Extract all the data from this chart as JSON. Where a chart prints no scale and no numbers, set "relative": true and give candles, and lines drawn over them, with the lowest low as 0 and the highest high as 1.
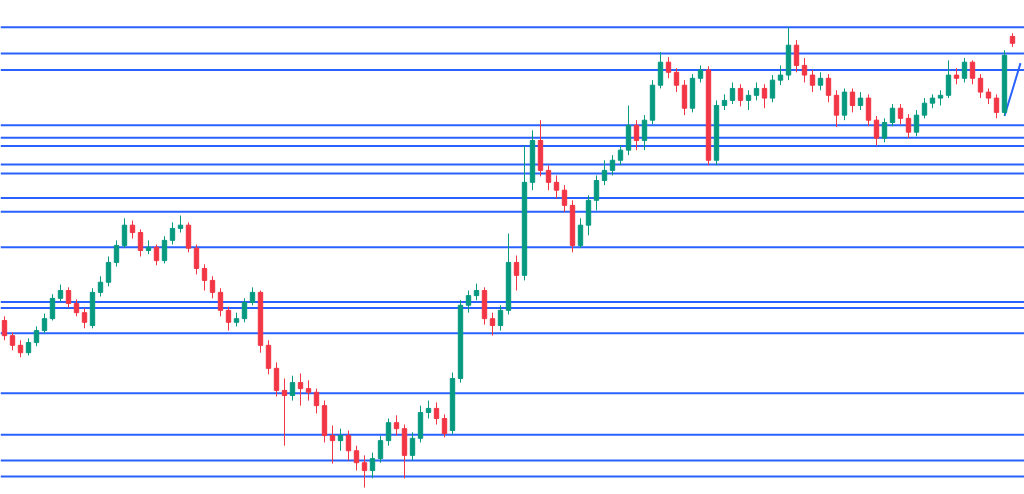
{
  "chart_data": {
    "type": "candlestick",
    "relative": true,
    "tick_labels": false,
    "categories": [
      null,
      null,
      null,
      null,
      null,
      null,
      null,
      null,
      null,
      null,
      null,
      null,
      null,
      null,
      null,
      null,
      null,
      null,
      null,
      null,
      null,
      null,
      null,
      null,
      null,
      null,
      null,
      null,
      null,
      null,
      null,
      null,
      null,
      null,
      null,
      null,
      null,
      null,
      null,
      null,
      null,
      null,
      null,
      null,
      null,
      null,
      null,
      null,
      null,
      null,
      null,
      null,
      null,
      null,
      null,
      null,
      null,
      null,
      null,
      null,
      null,
      null,
      null,
      null,
      null,
      null,
      null,
      null,
      null,
      null,
      null,
      null,
      null,
      null,
      null,
      null,
      null,
      null,
      null,
      null,
      null,
      null,
      null,
      null,
      null,
      null,
      null,
      null,
      null,
      null,
      null,
      null,
      null,
      null,
      null,
      null,
      null,
      null,
      null,
      null,
      null,
      null,
      null,
      null,
      null,
      null,
      null,
      null,
      null,
      null,
      null,
      null,
      null,
      null,
      null,
      null,
      null,
      null,
      null,
      null,
      null,
      null,
      null,
      null,
      null,
      null,
      null,
      null
    ],
    "ohlc": [
      [
        0.363,
        0.372,
        0.32,
        0.33
      ],
      [
        0.33,
        0.337,
        0.298,
        0.309
      ],
      [
        0.309,
        0.32,
        0.283,
        0.293
      ],
      [
        0.293,
        0.324,
        0.287,
        0.315
      ],
      [
        0.315,
        0.35,
        0.307,
        0.341
      ],
      [
        0.341,
        0.378,
        0.335,
        0.367
      ],
      [
        0.367,
        0.42,
        0.363,
        0.411
      ],
      [
        0.411,
        0.441,
        0.404,
        0.428
      ],
      [
        0.428,
        0.435,
        0.391,
        0.4
      ],
      [
        0.4,
        0.409,
        0.372,
        0.38
      ],
      [
        0.38,
        0.389,
        0.346,
        0.359
      ],
      [
        0.352,
        0.433,
        0.346,
        0.424
      ],
      [
        0.424,
        0.459,
        0.415,
        0.446
      ],
      [
        0.446,
        0.502,
        0.437,
        0.489
      ],
      [
        0.489,
        0.537,
        0.48,
        0.526
      ],
      [
        0.526,
        0.585,
        0.52,
        0.57
      ],
      [
        0.57,
        0.58,
        0.541,
        0.554
      ],
      [
        0.554,
        0.561,
        0.502,
        0.515
      ],
      [
        0.515,
        0.537,
        0.507,
        0.522
      ],
      [
        0.522,
        0.528,
        0.483,
        0.493
      ],
      [
        0.493,
        0.546,
        0.487,
        0.537
      ],
      [
        0.537,
        0.576,
        0.528,
        0.563
      ],
      [
        0.563,
        0.591,
        0.554,
        0.57
      ],
      [
        0.57,
        0.576,
        0.511,
        0.52
      ],
      [
        0.52,
        0.528,
        0.463,
        0.476
      ],
      [
        0.476,
        0.485,
        0.428,
        0.45
      ],
      [
        0.45,
        0.459,
        0.411,
        0.424
      ],
      [
        0.424,
        0.433,
        0.372,
        0.385
      ],
      [
        0.385,
        0.393,
        0.341,
        0.359
      ],
      [
        0.359,
        0.38,
        0.35,
        0.367
      ],
      [
        0.367,
        0.411,
        0.359,
        0.402
      ],
      [
        0.402,
        0.435,
        0.396,
        0.424
      ],
      [
        0.424,
        0.428,
        0.293,
        0.309
      ],
      [
        0.309,
        0.32,
        0.246,
        0.259
      ],
      [
        0.259,
        0.272,
        0.198,
        0.211
      ],
      [
        0.211,
        0.237,
        0.091,
        0.2
      ],
      [
        0.2,
        0.243,
        0.189,
        0.228
      ],
      [
        0.228,
        0.248,
        0.178,
        0.215
      ],
      [
        0.215,
        0.233,
        0.189,
        0.207
      ],
      [
        0.207,
        0.215,
        0.161,
        0.178
      ],
      [
        0.178,
        0.189,
        0.098,
        0.113
      ],
      [
        0.113,
        0.135,
        0.052,
        0.102
      ],
      [
        0.102,
        0.128,
        0.08,
        0.113
      ],
      [
        0.113,
        0.124,
        0.059,
        0.08
      ],
      [
        0.08,
        0.091,
        0.037,
        0.054
      ],
      [
        0.054,
        0.07,
        0,
        0.037
      ],
      [
        0.037,
        0.076,
        0.02,
        0.063
      ],
      [
        0.063,
        0.113,
        0.054,
        0.102
      ],
      [
        0.102,
        0.15,
        0.091,
        0.141
      ],
      [
        0.141,
        0.157,
        0.113,
        0.128
      ],
      [
        0.128,
        0.137,
        0.02,
        0.07
      ],
      [
        0.07,
        0.12,
        0.059,
        0.107
      ],
      [
        0.107,
        0.178,
        0.098,
        0.163
      ],
      [
        0.163,
        0.189,
        0.15,
        0.172
      ],
      [
        0.172,
        0.185,
        0.137,
        0.15
      ],
      [
        0.15,
        0.159,
        0.109,
        0.117
      ],
      [
        0.124,
        0.25,
        0.115,
        0.237
      ],
      [
        0.237,
        0.407,
        0.228,
        0.396
      ],
      [
        0.396,
        0.428,
        0.38,
        0.417
      ],
      [
        0.417,
        0.443,
        0.407,
        0.428
      ],
      [
        0.428,
        0.435,
        0.354,
        0.367
      ],
      [
        0.367,
        0.38,
        0.33,
        0.352
      ],
      [
        0.352,
        0.396,
        0.341,
        0.385
      ],
      [
        0.385,
        0.552,
        0.376,
        0.489
      ],
      [
        0.489,
        0.504,
        0.428,
        0.461
      ],
      [
        0.461,
        0.743,
        0.45,
        0.663
      ],
      [
        0.663,
        0.776,
        0.646,
        0.754
      ],
      [
        0.754,
        0.798,
        0.676,
        0.689
      ],
      [
        0.689,
        0.7,
        0.646,
        0.663
      ],
      [
        0.663,
        0.678,
        0.628,
        0.646
      ],
      [
        0.646,
        0.657,
        0.598,
        0.613
      ],
      [
        0.613,
        0.624,
        0.511,
        0.526
      ],
      [
        0.526,
        0.585,
        0.52,
        0.57
      ],
      [
        0.57,
        0.635,
        0.548,
        0.624
      ],
      [
        0.624,
        0.678,
        0.602,
        0.667
      ],
      [
        0.667,
        0.711,
        0.657,
        0.689
      ],
      [
        0.689,
        0.722,
        0.678,
        0.711
      ],
      [
        0.711,
        0.743,
        0.7,
        0.733
      ],
      [
        0.733,
        0.83,
        0.722,
        0.787
      ],
      [
        0.787,
        0.798,
        0.733,
        0.754
      ],
      [
        0.754,
        0.809,
        0.733,
        0.798
      ],
      [
        0.798,
        0.885,
        0.789,
        0.874
      ],
      [
        0.874,
        0.946,
        0.867,
        0.924
      ],
      [
        0.924,
        0.935,
        0.889,
        0.902
      ],
      [
        0.902,
        0.911,
        0.859,
        0.874
      ],
      [
        0.874,
        0.885,
        0.809,
        0.824
      ],
      [
        0.824,
        0.898,
        0.815,
        0.889
      ],
      [
        0.889,
        0.917,
        0.88,
        0.907
      ],
      [
        0.907,
        0.915,
        0.7,
        0.711
      ],
      [
        0.711,
        0.841,
        0.7,
        0.83
      ],
      [
        0.83,
        0.854,
        0.82,
        0.841
      ],
      [
        0.841,
        0.88,
        0.833,
        0.867
      ],
      [
        0.867,
        0.876,
        0.828,
        0.841
      ],
      [
        0.841,
        0.863,
        0.82,
        0.852
      ],
      [
        0.852,
        0.88,
        0.841,
        0.867
      ],
      [
        0.867,
        0.876,
        0.824,
        0.846
      ],
      [
        0.846,
        0.896,
        0.837,
        0.885
      ],
      [
        0.885,
        0.917,
        0.874,
        0.896
      ],
      [
        0.896,
        1,
        0.885,
        0.961
      ],
      [
        0.961,
        0.972,
        0.902,
        0.917
      ],
      [
        0.917,
        0.933,
        0.88,
        0.896
      ],
      [
        0.896,
        0.907,
        0.859,
        0.874
      ],
      [
        0.874,
        0.902,
        0.863,
        0.889
      ],
      [
        0.889,
        0.898,
        0.837,
        0.852
      ],
      [
        0.852,
        0.863,
        0.783,
        0.809
      ],
      [
        0.809,
        0.867,
        0.798,
        0.859
      ],
      [
        0.859,
        0.867,
        0.815,
        0.83
      ],
      [
        0.83,
        0.859,
        0.82,
        0.846
      ],
      [
        0.846,
        0.854,
        0.785,
        0.798
      ],
      [
        0.798,
        0.807,
        0.743,
        0.759
      ],
      [
        0.759,
        0.802,
        0.75,
        0.793
      ],
      [
        0.793,
        0.833,
        0.785,
        0.824
      ],
      [
        0.824,
        0.833,
        0.789,
        0.802
      ],
      [
        0.802,
        0.811,
        0.759,
        0.772
      ],
      [
        0.772,
        0.82,
        0.763,
        0.809
      ],
      [
        0.809,
        0.846,
        0.802,
        0.835
      ],
      [
        0.835,
        0.854,
        0.824,
        0.846
      ],
      [
        0.846,
        0.863,
        0.83,
        0.852
      ],
      [
        0.852,
        0.928,
        0.846,
        0.896
      ],
      [
        0.896,
        0.911,
        0.876,
        0.889
      ],
      [
        0.889,
        0.933,
        0.88,
        0.924
      ],
      [
        0.924,
        0.928,
        0.876,
        0.889
      ],
      [
        0.889,
        0.898,
        0.846,
        0.859
      ],
      [
        0.859,
        0.867,
        0.833,
        0.846
      ],
      [
        0.846,
        0.854,
        0.802,
        0.815
      ],
      [
        0.815,
        0.95,
        0.807,
        0.939
      ],
      [
        0.98,
        0.987,
        0.957,
        0.965
      ],
      null
    ],
    "colors": [
      "#f23645",
      "#f23645",
      "#f23645",
      "#089981",
      "#089981",
      "#089981",
      "#089981",
      "#089981",
      "#f23645",
      "#f23645",
      "#f23645",
      "#089981",
      "#089981",
      "#089981",
      "#089981",
      "#089981",
      "#f23645",
      "#f23645",
      "#089981",
      "#f23645",
      "#089981",
      "#089981",
      "#089981",
      "#f23645",
      "#f23645",
      "#f23645",
      "#f23645",
      "#f23645",
      "#f23645",
      "#089981",
      "#089981",
      "#089981",
      "#f23645",
      "#f23645",
      "#f23645",
      "#f23645",
      "#089981",
      "#f23645",
      "#f23645",
      "#f23645",
      "#f23645",
      "#f23645",
      "#089981",
      "#f23645",
      "#f23645",
      "#f23645",
      "#089981",
      "#089981",
      "#089981",
      "#f23645",
      "#f23645",
      "#089981",
      "#089981",
      "#089981",
      "#f23645",
      "#f23645",
      "#089981",
      "#089981",
      "#089981",
      "#089981",
      "#f23645",
      "#f23645",
      "#089981",
      "#089981",
      "#f23645",
      "#089981",
      "#089981",
      "#f23645",
      "#f23645",
      "#f23645",
      "#f23645",
      "#f23645",
      "#089981",
      "#089981",
      "#089981",
      "#089981",
      "#089981",
      "#089981",
      "#089981",
      "#f23645",
      "#089981",
      "#089981",
      "#089981",
      "#f23645",
      "#f23645",
      "#f23645",
      "#089981",
      "#089981",
      "#f23645",
      "#089981",
      "#089981",
      "#089981",
      "#f23645",
      "#089981",
      "#089981",
      "#f23645",
      "#089981",
      "#089981",
      "#089981",
      "#f23645",
      "#f23645",
      "#f23645",
      "#089981",
      "#f23645",
      "#f23645",
      "#089981",
      "#f23645",
      "#089981",
      "#f23645",
      "#f23645",
      "#089981",
      "#089981",
      "#f23645",
      "#f23645",
      "#089981",
      "#089981",
      "#089981",
      "#089981",
      "#089981",
      "#f23645",
      "#089981",
      "#f23645",
      "#f23645",
      "#f23645",
      "#f23645",
      "#089981",
      "#f23645",
      null
    ],
    "series": [
      {
        "type": "line",
        "values": [
          null,
          null,
          null,
          null,
          null,
          null,
          null,
          null,
          null,
          null,
          null,
          null,
          null,
          null,
          null,
          null,
          null,
          null,
          null,
          null,
          null,
          null,
          null,
          null,
          null,
          null,
          null,
          null,
          null,
          null,
          null,
          null,
          null,
          null,
          null,
          null,
          null,
          null,
          null,
          null,
          null,
          null,
          null,
          null,
          null,
          null,
          null,
          null,
          null,
          null,
          null,
          null,
          null,
          null,
          null,
          null,
          null,
          null,
          null,
          null,
          null,
          null,
          null,
          null,
          null,
          null,
          null,
          null,
          null,
          null,
          null,
          null,
          null,
          null,
          null,
          null,
          null,
          null,
          null,
          null,
          null,
          null,
          null,
          null,
          null,
          null,
          null,
          null,
          null,
          null,
          null,
          null,
          null,
          null,
          null,
          null,
          null,
          null,
          null,
          null,
          null,
          null,
          null,
          null,
          null,
          null,
          null,
          null,
          null,
          null,
          null,
          null,
          null,
          null,
          null,
          null,
          null,
          null,
          null,
          null,
          null,
          null,
          null,
          null,
          null,
          0.807,
          0.864,
          0.922
        ],
        "color": "#2962ff"
      }
    ],
    "ref_lines": [
      {
        "axis": "y",
        "value": 1.0,
        "color": "#2962ff"
      },
      {
        "axis": "y",
        "value": 0.943,
        "color": "#2962ff"
      },
      {
        "axis": "y",
        "value": 0.907,
        "color": "#2962ff"
      },
      {
        "axis": "y",
        "value": 0.787,
        "color": "#2962ff"
      },
      {
        "axis": "y",
        "value": 0.76,
        "color": "#2962ff"
      },
      {
        "axis": "y",
        "value": 0.742,
        "color": "#2962ff"
      },
      {
        "axis": "y",
        "value": 0.702,
        "color": "#2962ff"
      },
      {
        "axis": "y",
        "value": 0.682,
        "color": "#2962ff"
      },
      {
        "axis": "y",
        "value": 0.629,
        "color": "#2962ff"
      },
      {
        "axis": "y",
        "value": 0.599,
        "color": "#2962ff"
      },
      {
        "axis": "y",
        "value": 0.522,
        "color": "#2962ff"
      },
      {
        "axis": "y",
        "value": 0.403,
        "color": "#2962ff"
      },
      {
        "axis": "y",
        "value": 0.39,
        "color": "#2962ff"
      },
      {
        "axis": "y",
        "value": 0.335,
        "color": "#2962ff"
      },
      {
        "axis": "y",
        "value": 0.205,
        "color": "#2962ff"
      },
      {
        "axis": "y",
        "value": 0.115,
        "color": "#2962ff"
      },
      {
        "axis": "y",
        "value": 0.059,
        "color": "#2962ff"
      },
      {
        "axis": "y",
        "value": 0.024,
        "color": "#2962ff"
      }
    ]
  }
}
